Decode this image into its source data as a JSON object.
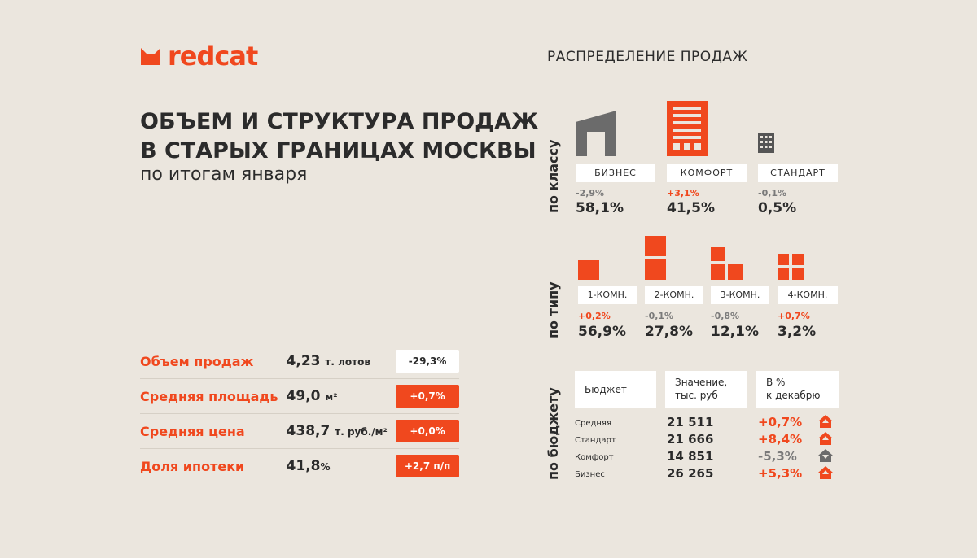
{
  "brand": {
    "name": "redcat"
  },
  "header": {
    "title_line1": "ОБЪЕМ И СТРУКТУРА ПРОДАЖ",
    "title_line2": "В СТАРЫХ ГРАНИЦАХ МОСКВЫ",
    "subtitle": "по итогам января"
  },
  "kpis": [
    {
      "label": "Объем продаж",
      "value": "4,23",
      "unit": "т. лотов",
      "change": "-29,3%",
      "trend": "down"
    },
    {
      "label": "Средняя площадь",
      "value": "49,0",
      "unit": "м²",
      "change": "+0,7%",
      "trend": "up"
    },
    {
      "label": "Средняя цена",
      "value": "438,7",
      "unit": "т. руб./м²",
      "change": "+0,0%",
      "trend": "up"
    },
    {
      "label": "Доля ипотеки",
      "value": "41,8",
      "unit": "%",
      "change": "+2,7 п/п",
      "trend": "up"
    }
  ],
  "distribution": {
    "heading": "РАСПРЕДЕЛЕНИЕ ПРОДАЖ",
    "by_class": {
      "label": "по классу",
      "items": [
        {
          "name": "БИЗНЕС",
          "delta": "-2,9%",
          "share": "58,1%",
          "trend": "down",
          "icon": "business-building-icon"
        },
        {
          "name": "КОМФОРТ",
          "delta": "+3,1%",
          "share": "41,5%",
          "trend": "up",
          "icon": "comfort-building-icon"
        },
        {
          "name": "СТАНДАРТ",
          "delta": "-0,1%",
          "share": "0,5%",
          "trend": "down",
          "icon": "standard-building-icon"
        }
      ]
    },
    "by_type": {
      "label": "по типу",
      "items": [
        {
          "name": "1-КОМН.",
          "delta": "+0,2%",
          "share": "56,9%",
          "trend": "up"
        },
        {
          "name": "2-КОМН.",
          "delta": "-0,1%",
          "share": "27,8%",
          "trend": "down"
        },
        {
          "name": "3-КОМН.",
          "delta": "-0,8%",
          "share": "12,1%",
          "trend": "down"
        },
        {
          "name": "4-КОМН.",
          "delta": "+0,7%",
          "share": "3,2%",
          "trend": "up"
        }
      ]
    },
    "by_budget": {
      "label": "по бюджету",
      "headers": [
        "Бюджет",
        "Значение,\nтыс. руб",
        "В %\nк декабрю"
      ],
      "rows": [
        {
          "name": "Средняя",
          "value": "21 511",
          "change": "+0,7%",
          "trend": "up"
        },
        {
          "name": "Стандарт",
          "value": "21 666",
          "change": "+8,4%",
          "trend": "up"
        },
        {
          "name": "Комфорт",
          "value": "14 851",
          "change": "-5,3%",
          "trend": "down"
        },
        {
          "name": "Бизнес",
          "value": "26 265",
          "change": "+5,3%",
          "trend": "up"
        }
      ]
    }
  },
  "colors": {
    "accent": "#f0481e",
    "dark": "#2b2b2b",
    "grey": "#6b6b6b",
    "background": "#ebe6de"
  }
}
